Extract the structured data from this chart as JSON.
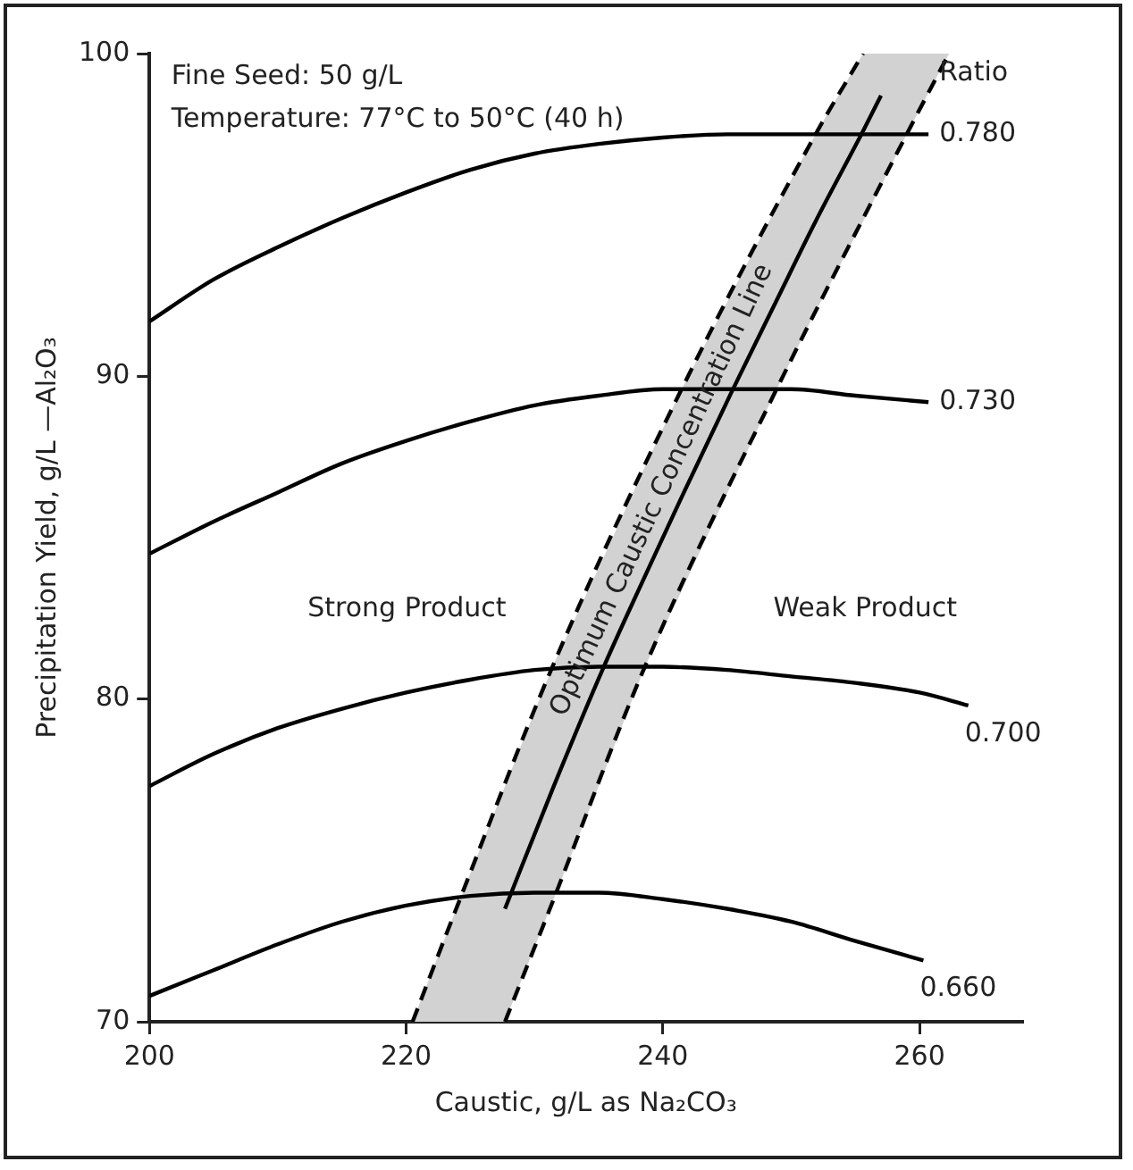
{
  "chart_data": {
    "type": "line",
    "xlabel": "Caustic, g/L as Na₂CO₃",
    "ylabel": "Precipitation Yield, g/L —Al₂O₃",
    "legend_title": "Ratio",
    "xlim": [
      200,
      268
    ],
    "xticks": [
      200,
      220,
      240,
      260
    ],
    "ylim": [
      70,
      100
    ],
    "yticks": [
      70,
      80,
      90,
      100
    ],
    "grid": false,
    "legend": false,
    "marker": "none",
    "line_style": "solid",
    "annotations": [
      "Fine Seed: 50 g/L",
      "Temperature: 77°C to 50°C (40 h)",
      "Strong Product",
      "Weak Product",
      {
        "text": "Optimum Caustic Concentration Line",
        "x": 241.4,
        "y": 86.2
      }
    ],
    "series": [
      {
        "name": "0.780",
        "color": "#000000",
        "x": [
          200,
          205,
          210,
          215,
          220,
          225,
          230,
          235,
          240,
          245,
          250,
          255,
          260.7
        ],
        "values": [
          91.7,
          93.0,
          94.0,
          94.9,
          95.7,
          96.4,
          96.9,
          97.2,
          97.4,
          97.5,
          97.5,
          97.5,
          97.5
        ]
      },
      {
        "name": "0.730",
        "color": "#000000",
        "x": [
          200,
          205,
          210,
          215,
          220,
          225,
          230,
          235,
          240,
          245,
          250,
          255,
          260.7
        ],
        "values": [
          84.5,
          85.5,
          86.4,
          87.3,
          88.0,
          88.6,
          89.1,
          89.4,
          89.6,
          89.6,
          89.6,
          89.4,
          89.2
        ]
      },
      {
        "name": "0.700",
        "color": "#000000",
        "x": [
          200,
          205,
          210,
          215,
          220,
          225,
          230,
          235,
          240,
          245,
          250,
          255,
          260,
          263.8
        ],
        "values": [
          77.3,
          78.3,
          79.1,
          79.7,
          80.2,
          80.6,
          80.9,
          81.0,
          81.0,
          80.9,
          80.7,
          80.5,
          80.2,
          79.8
        ]
      },
      {
        "name": "0.660",
        "color": "#000000",
        "x": [
          200,
          205,
          210,
          215,
          220,
          225,
          230,
          235,
          240,
          245,
          250,
          255,
          260.3
        ],
        "values": [
          70.8,
          71.6,
          72.4,
          73.1,
          73.6,
          73.9,
          74.0,
          74.0,
          73.8,
          73.5,
          73.1,
          72.5,
          71.9
        ]
      },
      {
        "color": "#000000",
        "line_style": "dashed",
        "x": [
          220.5,
          223.9,
          231.4,
          241.4,
          251.9,
          255.6
        ],
        "values": [
          70,
          73.5,
          81,
          89.55,
          97.5,
          100
        ]
      },
      {
        "color": "#000000",
        "line_style": "dashed",
        "x": [
          227.7,
          231.2,
          238.6,
          248.8,
          259,
          262.3
        ],
        "values": [
          70,
          73.5,
          81,
          89.55,
          97.5,
          100
        ]
      },
      {
        "color": "#000000",
        "x": [
          220.5,
          223.9,
          227.7,
          231.4,
          235.4,
          238.6,
          241.4,
          245.4,
          248.8,
          251.9,
          255.6,
          257,
          259,
          262.3
        ],
        "values": [
          null,
          null,
          73.5,
          77.2,
          81.0,
          83.8,
          86.2,
          89.55,
          92.3,
          94.8,
          97.6,
          98.7,
          null,
          null
        ],
        "lower": [
          70,
          70,
          70,
          73.7,
          77.7,
          81,
          83.3,
          86.7,
          89.55,
          92,
          94.8,
          95.9,
          97.5,
          100
        ],
        "upper": [
          70,
          73.5,
          77.3,
          81,
          84.4,
          87.2,
          89.55,
          92.6,
          95.2,
          97.5,
          100,
          100,
          100,
          100
        ]
      }
    ]
  }
}
